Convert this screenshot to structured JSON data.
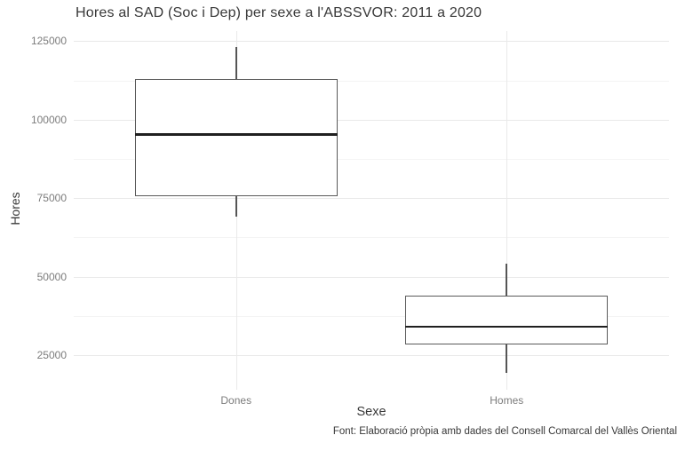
{
  "chart_data": {
    "type": "boxplot",
    "title": "Hores al SAD (Soc i Dep) per sexe a l'ABSSVOR: 2011 a 2020",
    "xlabel": "Sexe",
    "ylabel": "Hores",
    "caption": "Font: Elaboració pròpia amb dades del Consell Comarcal del Vallès Oriental",
    "categories": [
      "Dones",
      "Homes"
    ],
    "series": [
      {
        "category": "Dones",
        "whisker_low": 69000,
        "q1": 75500,
        "median": 95300,
        "q3": 113000,
        "whisker_high": 123000
      },
      {
        "category": "Homes",
        "whisker_low": 19500,
        "q1": 28500,
        "median": 34000,
        "q3": 44000,
        "whisker_high": 54000
      }
    ],
    "ylim": [
      14000,
      128200
    ],
    "yticks": [
      25000,
      50000,
      75000,
      100000,
      125000
    ],
    "yticks_minor": [
      37500,
      62500,
      87500,
      112500
    ],
    "grid": true,
    "legend": false,
    "box_width_fraction": 0.75,
    "colors": {
      "title": "#383838",
      "axis_title": "#3a3a3a",
      "tick_label": "#7c7c7c",
      "grid_major": "#e9e9e9",
      "grid_minor": "#f4f4f4",
      "box_border": "#5a5a5a",
      "median": "#1f1f1f",
      "whisker": "#555555",
      "caption": "#383838",
      "background": "#ffffff"
    }
  }
}
